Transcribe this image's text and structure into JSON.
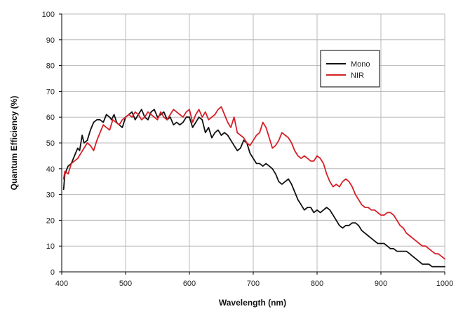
{
  "chart_data": {
    "type": "line",
    "title": "",
    "xlabel": "Wavelength (nm)",
    "ylabel": "Quantum Efficiency (%)",
    "xlim": [
      400,
      1000
    ],
    "ylim": [
      0,
      100
    ],
    "xticks": [
      400,
      500,
      600,
      700,
      800,
      900,
      1000
    ],
    "yticks": [
      0,
      10,
      20,
      30,
      40,
      50,
      60,
      70,
      80,
      90,
      100
    ],
    "grid": true,
    "legend_position": "top-right",
    "series": [
      {
        "name": "Mono",
        "color": "#111111",
        "x": [
          403,
          405,
          410,
          415,
          420,
          425,
          428,
          432,
          435,
          440,
          445,
          450,
          455,
          460,
          465,
          470,
          475,
          478,
          482,
          486,
          490,
          495,
          500,
          505,
          510,
          515,
          520,
          525,
          530,
          535,
          540,
          545,
          550,
          555,
          560,
          565,
          570,
          575,
          580,
          585,
          590,
          595,
          600,
          605,
          610,
          615,
          620,
          625,
          630,
          635,
          640,
          645,
          650,
          655,
          660,
          665,
          670,
          675,
          680,
          685,
          690,
          695,
          700,
          705,
          710,
          715,
          720,
          725,
          730,
          735,
          740,
          745,
          750,
          755,
          760,
          765,
          770,
          775,
          780,
          785,
          790,
          795,
          800,
          805,
          810,
          815,
          820,
          825,
          830,
          835,
          840,
          845,
          850,
          855,
          860,
          865,
          870,
          875,
          880,
          885,
          890,
          895,
          900,
          905,
          910,
          915,
          920,
          925,
          930,
          935,
          940,
          945,
          950,
          955,
          960,
          965,
          970,
          975,
          980,
          985,
          990,
          995,
          1000
        ],
        "y": [
          32,
          38,
          41,
          42,
          45,
          48,
          47,
          53,
          50,
          51,
          55,
          58,
          59,
          59,
          58,
          61,
          60,
          59,
          61,
          58,
          57,
          56,
          60,
          61,
          62,
          59,
          61,
          63,
          60,
          59,
          62,
          63,
          60,
          61,
          62,
          59,
          60,
          57,
          58,
          57,
          58,
          60,
          60,
          56,
          58,
          60,
          59,
          54,
          56,
          52,
          54,
          55,
          53,
          54,
          53,
          51,
          49,
          47,
          48,
          51,
          50,
          46,
          44,
          42,
          42,
          41,
          42,
          41,
          40,
          38,
          35,
          34,
          35,
          36,
          34,
          31,
          28,
          26,
          24,
          25,
          25,
          23,
          24,
          23,
          24,
          25,
          24,
          22,
          20,
          18,
          17,
          18,
          18,
          19,
          19,
          18,
          16,
          15,
          14,
          13,
          12,
          11,
          11,
          11,
          10,
          9,
          9,
          8,
          8,
          8,
          8,
          7,
          6,
          5,
          4,
          3,
          3,
          3,
          2,
          2,
          2,
          2,
          2
        ]
      },
      {
        "name": "NIR",
        "color": "#d42027",
        "x": [
          403,
          405,
          410,
          415,
          420,
          425,
          430,
          435,
          440,
          445,
          450,
          455,
          460,
          465,
          470,
          475,
          480,
          485,
          490,
          495,
          500,
          505,
          510,
          515,
          520,
          525,
          530,
          535,
          540,
          545,
          550,
          555,
          560,
          565,
          570,
          575,
          580,
          585,
          590,
          595,
          600,
          605,
          610,
          615,
          620,
          625,
          630,
          635,
          640,
          645,
          650,
          655,
          660,
          665,
          670,
          675,
          680,
          685,
          690,
          695,
          700,
          705,
          710,
          715,
          720,
          725,
          730,
          735,
          740,
          745,
          750,
          755,
          760,
          765,
          770,
          775,
          780,
          785,
          790,
          795,
          800,
          805,
          810,
          815,
          820,
          825,
          830,
          835,
          840,
          845,
          850,
          855,
          860,
          865,
          870,
          875,
          880,
          885,
          890,
          895,
          900,
          905,
          910,
          915,
          920,
          925,
          930,
          935,
          940,
          945,
          950,
          955,
          960,
          965,
          970,
          975,
          980,
          985,
          990,
          995,
          1000
        ],
        "y": [
          36,
          39,
          38,
          42,
          43,
          44,
          46,
          48,
          50,
          49,
          47,
          51,
          54,
          57,
          56,
          55,
          59,
          58,
          57,
          59,
          60,
          61,
          60,
          62,
          61,
          59,
          60,
          62,
          61,
          60,
          59,
          62,
          60,
          59,
          61,
          63,
          62,
          61,
          60,
          62,
          63,
          58,
          61,
          63,
          60,
          62,
          59,
          60,
          61,
          63,
          64,
          61,
          58,
          56,
          60,
          54,
          53,
          52,
          50,
          49,
          51,
          53,
          54,
          58,
          56,
          52,
          48,
          49,
          51,
          54,
          53,
          52,
          50,
          47,
          45,
          44,
          45,
          44,
          43,
          43,
          45,
          44,
          42,
          38,
          35,
          33,
          34,
          33,
          35,
          36,
          35,
          33,
          30,
          28,
          26,
          25,
          25,
          24,
          24,
          23,
          22,
          22,
          23,
          23,
          22,
          20,
          18,
          17,
          15,
          14,
          13,
          12,
          11,
          10,
          10,
          9,
          8,
          7,
          7,
          6,
          5
        ]
      }
    ]
  }
}
